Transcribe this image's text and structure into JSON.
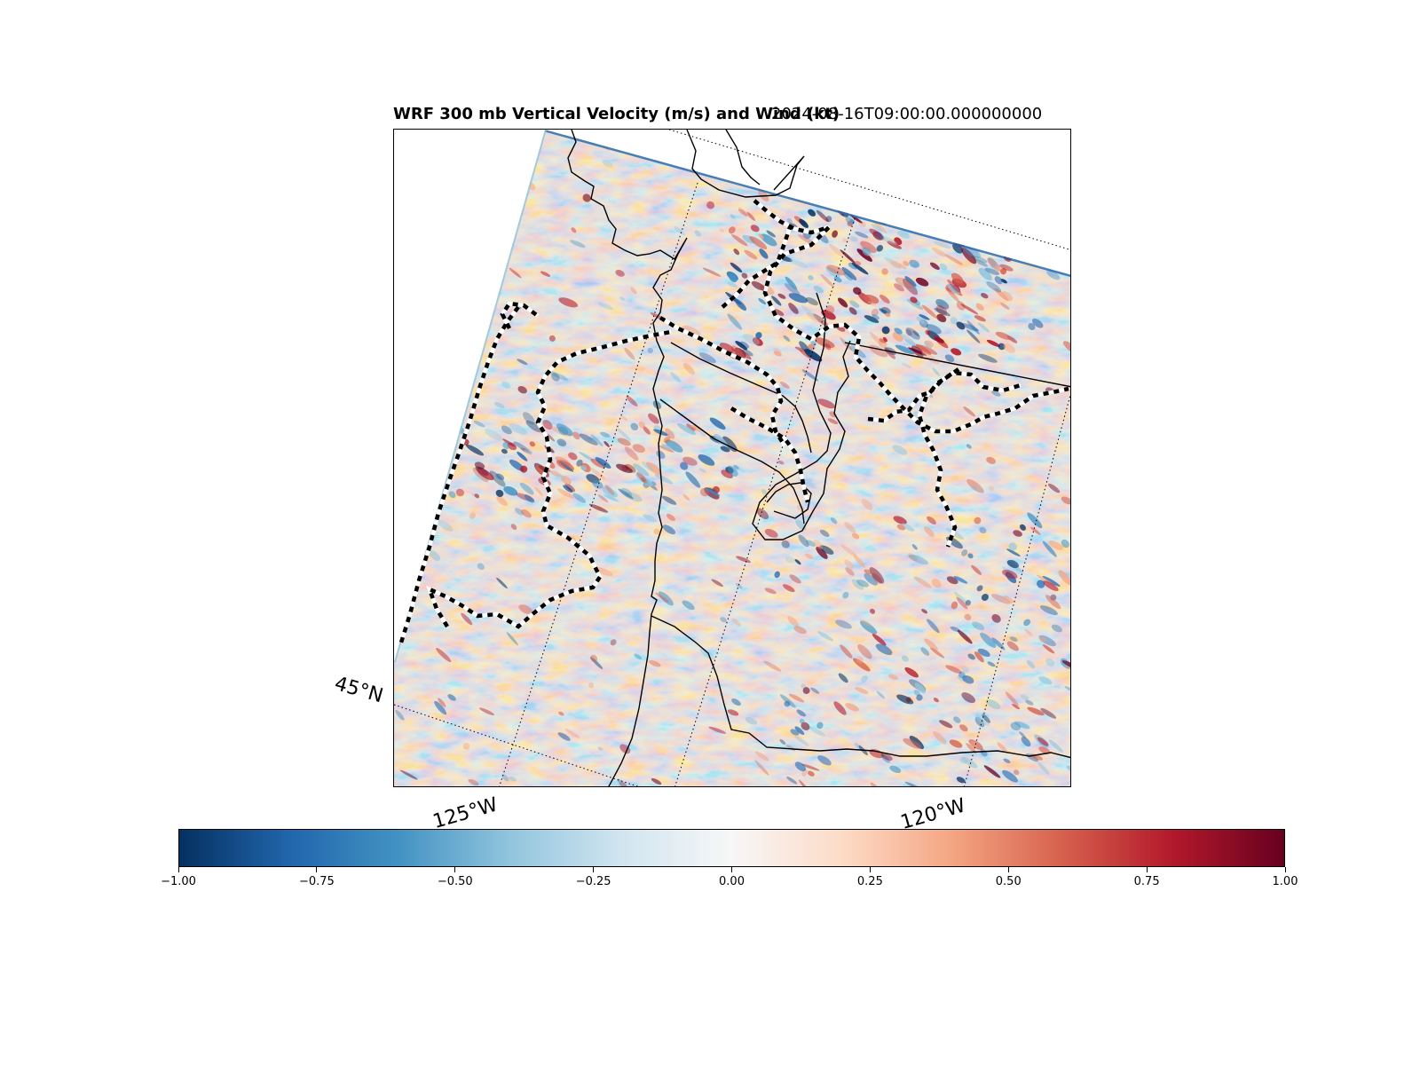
{
  "title": {
    "left": "WRF 300 mb Vertical Velocity (m/s) and Wind (kt)",
    "right": "2024-08-16T09:00:00.000000000"
  },
  "map": {
    "projection": "lambert-conformal",
    "latitude_labels": [
      "45°N"
    ],
    "longitude_labels": [
      "125°W",
      "120°W"
    ],
    "field_colormap": "RdBu_r",
    "overlays": [
      "coastlines",
      "state-borders",
      "country-border",
      "lat-lon-gridlines (dotted)",
      "wind contours (dashed black/white)"
    ]
  },
  "colorbar": {
    "vmin": -1.0,
    "vmax": 1.0,
    "colors": [
      "#053061",
      "#2166ac",
      "#4393c3",
      "#92c5de",
      "#d1e5f0",
      "#f7f7f7",
      "#fddbc7",
      "#f4a582",
      "#d6604d",
      "#b2182b",
      "#67001f"
    ],
    "ticks": [
      "−1.00",
      "−0.75",
      "−0.50",
      "−0.25",
      "0.00",
      "0.25",
      "0.50",
      "0.75",
      "1.00"
    ]
  }
}
